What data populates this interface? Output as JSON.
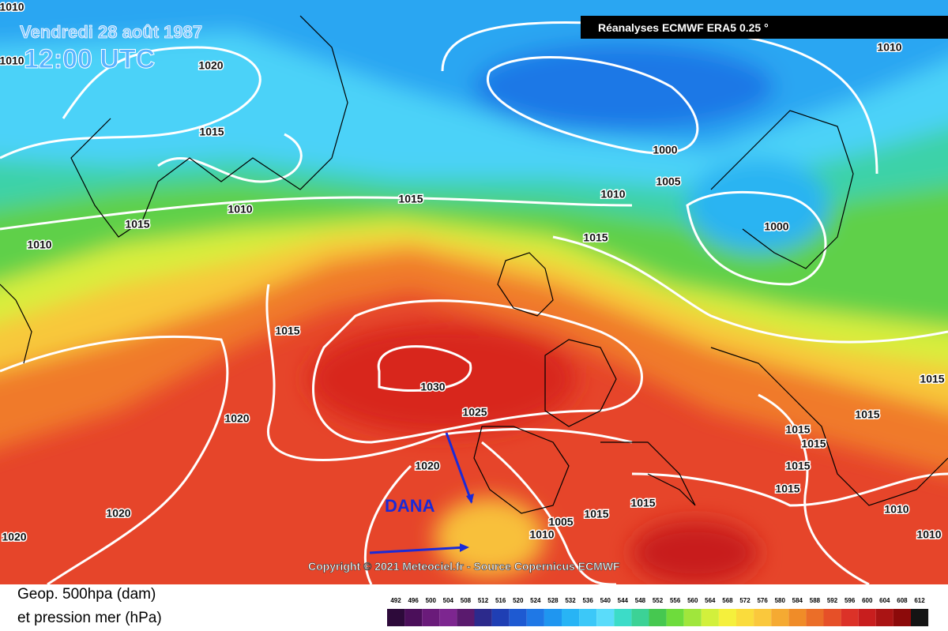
{
  "header": {
    "date": "Vendredi 28 août 1987",
    "time": "12:00 UTC",
    "source": "Réanalyses ECMWF ERA5 0.25 °"
  },
  "map": {
    "annotation": "DANA",
    "copyright": "Copyright © 2021 Meteociel.fr - Source Copernicus ECMWF",
    "isobar_labels": [
      "1010",
      "1010",
      "1020",
      "1015",
      "1010",
      "1015",
      "1010",
      "1015",
      "1010",
      "1015",
      "1000",
      "1005",
      "1000",
      "1010",
      "1015",
      "1030",
      "1025",
      "1020",
      "1020",
      "1020",
      "1020",
      "1015",
      "1015",
      "1005",
      "1010",
      "1015",
      "1015",
      "1015",
      "1015",
      "1015",
      "1015",
      "1010",
      "1010"
    ]
  },
  "legend": {
    "title_line1": "Geop. 500hpa (dam)",
    "title_line2": "et pression mer (hPa)",
    "scale": [
      492,
      496,
      500,
      504,
      508,
      512,
      516,
      520,
      524,
      528,
      532,
      536,
      540,
      544,
      548,
      552,
      556,
      560,
      564,
      568,
      572,
      576,
      580,
      584,
      588,
      592,
      596,
      600,
      604,
      608,
      612
    ],
    "colors": [
      "#2d0a3a",
      "#4b0f5a",
      "#6a1b7a",
      "#7d2690",
      "#5a1a6e",
      "#2c2a8c",
      "#1f3fb4",
      "#1e5ad2",
      "#1f78e6",
      "#1f96f0",
      "#28b4f5",
      "#3cc8f8",
      "#5adcfa",
      "#3cdcc8",
      "#3cd296",
      "#46c850",
      "#6edc3c",
      "#a0e63c",
      "#d2f03c",
      "#f5f03c",
      "#fadc3c",
      "#fac83c",
      "#f5aa32",
      "#f08c28",
      "#eb6e28",
      "#e65028",
      "#dc3228",
      "#c81e1e",
      "#aa1414",
      "#8c0a0a",
      "#141414"
    ]
  }
}
